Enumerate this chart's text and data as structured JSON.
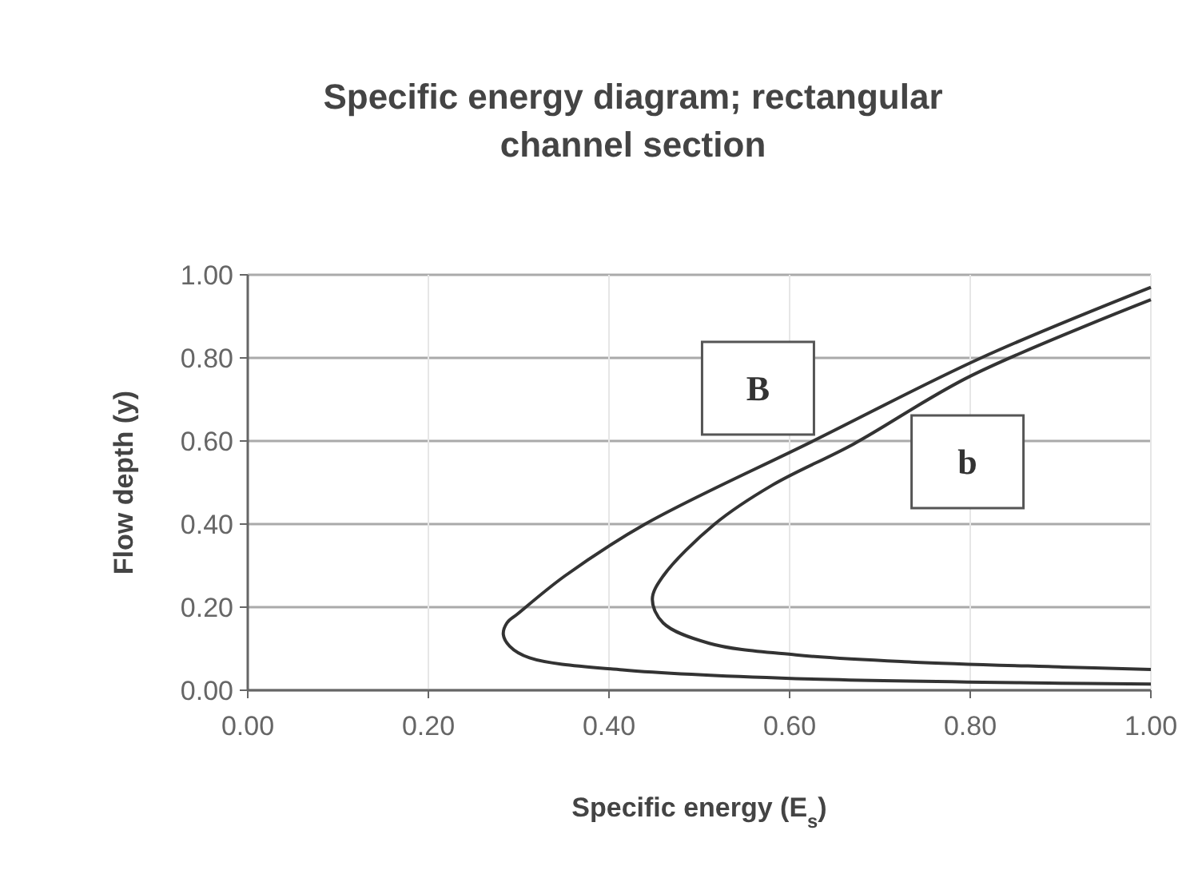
{
  "chart_data": {
    "type": "line",
    "title": "Specific energy diagram; rectangular channel section",
    "xlabel": "Specific energy (E$_{s}$)",
    "ylabel": "Flow depth (y)",
    "xlim": [
      0,
      1
    ],
    "ylim": [
      0,
      1
    ],
    "xticks": [
      {
        "value": 0,
        "label": "0.00"
      },
      {
        "value": 0.2,
        "label": "0.20"
      },
      {
        "value": 0.4,
        "label": "0.40"
      },
      {
        "value": 0.6,
        "label": "0.60"
      },
      {
        "value": 0.8,
        "label": "0.80"
      },
      {
        "value": 1,
        "label": "1.00"
      }
    ],
    "yticks": [
      {
        "value": 0,
        "label": "0.00"
      },
      {
        "value": 0.2,
        "label": "0.20"
      },
      {
        "value": 0.4,
        "label": "0.40"
      },
      {
        "value": 0.6,
        "label": "0.60"
      },
      {
        "value": 0.8,
        "label": "0.80"
      },
      {
        "value": 1,
        "label": "1.00"
      }
    ],
    "grid": true,
    "legend": false,
    "marker": "none",
    "line_style": "solid",
    "series": [
      {
        "name": "B",
        "color": "#333333",
        "x": [
          1,
          0.9,
          0.607,
          0.415,
          0.312,
          0.29,
          0.283,
          0.287,
          0.299,
          0.351,
          0.44,
          0.626,
          0.812,
          1
        ],
        "values": [
          0.015,
          0.017,
          0.028,
          0.049,
          0.078,
          0.106,
          0.134,
          0.162,
          0.184,
          0.275,
          0.4,
          0.6,
          0.8,
          0.97
        ]
      },
      {
        "name": "b",
        "color": "#333333",
        "x": [
          1,
          0.902,
          0.735,
          0.607,
          0.511,
          0.46,
          0.448,
          0.46,
          0.517,
          0.581,
          0.671,
          0.8,
          1
        ],
        "values": [
          0.05,
          0.056,
          0.068,
          0.085,
          0.113,
          0.162,
          0.219,
          0.275,
          0.4,
          0.494,
          0.593,
          0.756,
          0.94
        ]
      }
    ]
  }
}
